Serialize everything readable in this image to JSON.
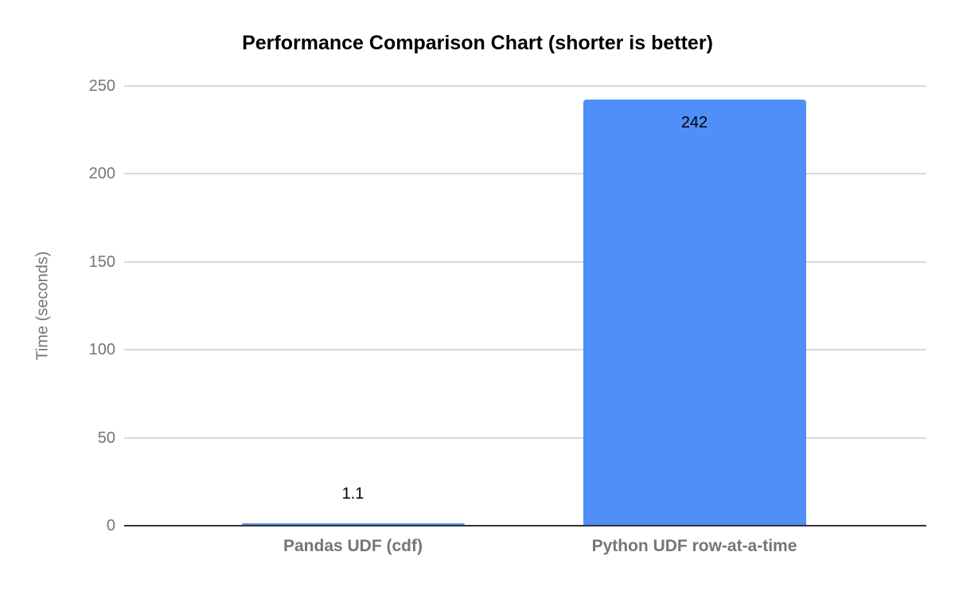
{
  "chart_data": {
    "type": "bar",
    "title": "Performance Comparison Chart (shorter is better)",
    "xlabel": "",
    "ylabel": "Time (seconds)",
    "categories": [
      "Pandas UDF (cdf)",
      "Python UDF row-at-a-time"
    ],
    "values": [
      1.1,
      242
    ],
    "value_labels": [
      "1.1",
      "242"
    ],
    "ylim": [
      0,
      250
    ],
    "yticks": [
      0,
      50,
      100,
      150,
      200,
      250
    ],
    "grid": true,
    "legend": "none",
    "colors": {
      "bar": "#4f8ff7",
      "gridline": "#d9d9d9",
      "zero_axis": "#333333",
      "tick_label": "#757575",
      "category_label": "#757575",
      "title": "#000000",
      "value_label": "#000000",
      "background": "#ffffff"
    }
  }
}
